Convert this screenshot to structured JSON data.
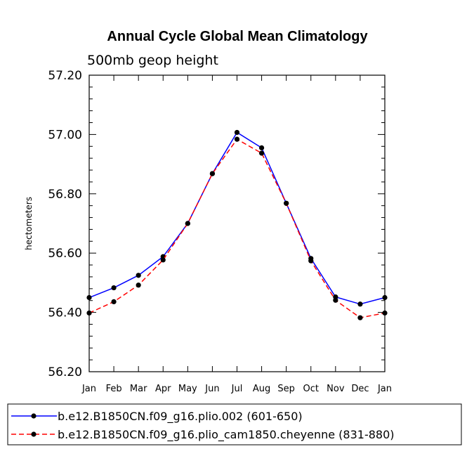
{
  "chart_data": {
    "type": "line",
    "title": "Annual Cycle Global Mean Climatology",
    "subtitle": "500mb geop height",
    "xlabel": "",
    "ylabel": "hectometers",
    "categories": [
      "Jan",
      "Feb",
      "Mar",
      "Apr",
      "May",
      "Jun",
      "Jul",
      "Aug",
      "Sep",
      "Oct",
      "Nov",
      "Dec",
      "Jan"
    ],
    "ylim": [
      56.2,
      57.2
    ],
    "yticks": [
      "56.20",
      "56.40",
      "56.60",
      "56.80",
      "57.00",
      "57.20"
    ],
    "grid": false,
    "series": [
      {
        "name": "b.e12.B1850CN.f09_g16.plio.002 (601-650)",
        "color": "#0000ff",
        "dash": "solid",
        "values": [
          56.45,
          56.483,
          56.525,
          56.588,
          56.7,
          56.868,
          57.007,
          56.955,
          56.768,
          56.582,
          56.452,
          56.428,
          56.45
        ]
      },
      {
        "name": "b.e12.B1850CN.f09_g16.plio_cam1850.cheyenne (831-880)",
        "color": "#ff0000",
        "dash": "dashed",
        "values": [
          56.398,
          56.436,
          56.492,
          56.577,
          56.7,
          56.868,
          56.984,
          56.937,
          56.768,
          56.574,
          56.441,
          56.382,
          56.398
        ]
      }
    ],
    "legend_position": "bottom"
  }
}
